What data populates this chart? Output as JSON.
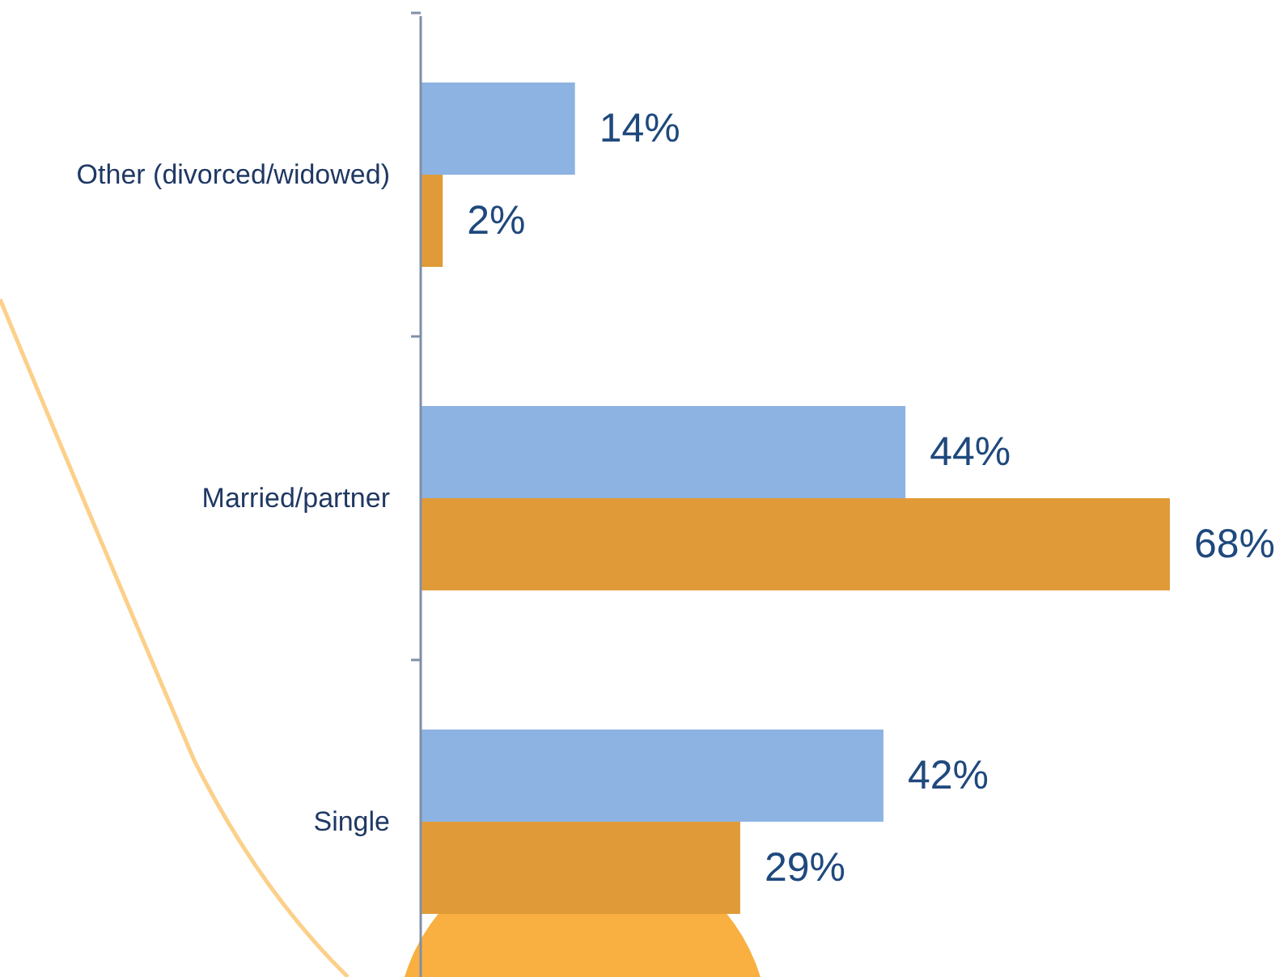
{
  "chart_data": {
    "type": "bar",
    "orientation": "horizontal",
    "categories": [
      "Other (divorced/widowed)",
      "Married/partner",
      "Single"
    ],
    "series": [
      {
        "color": "#8db3e2",
        "values": [
          14,
          44,
          42
        ],
        "value_labels": [
          "14%",
          "44%",
          "42%"
        ]
      },
      {
        "color": "#e09b38",
        "values": [
          2,
          68,
          29
        ],
        "value_labels": [
          "2%",
          "68%",
          "29%"
        ]
      }
    ]
  }
}
